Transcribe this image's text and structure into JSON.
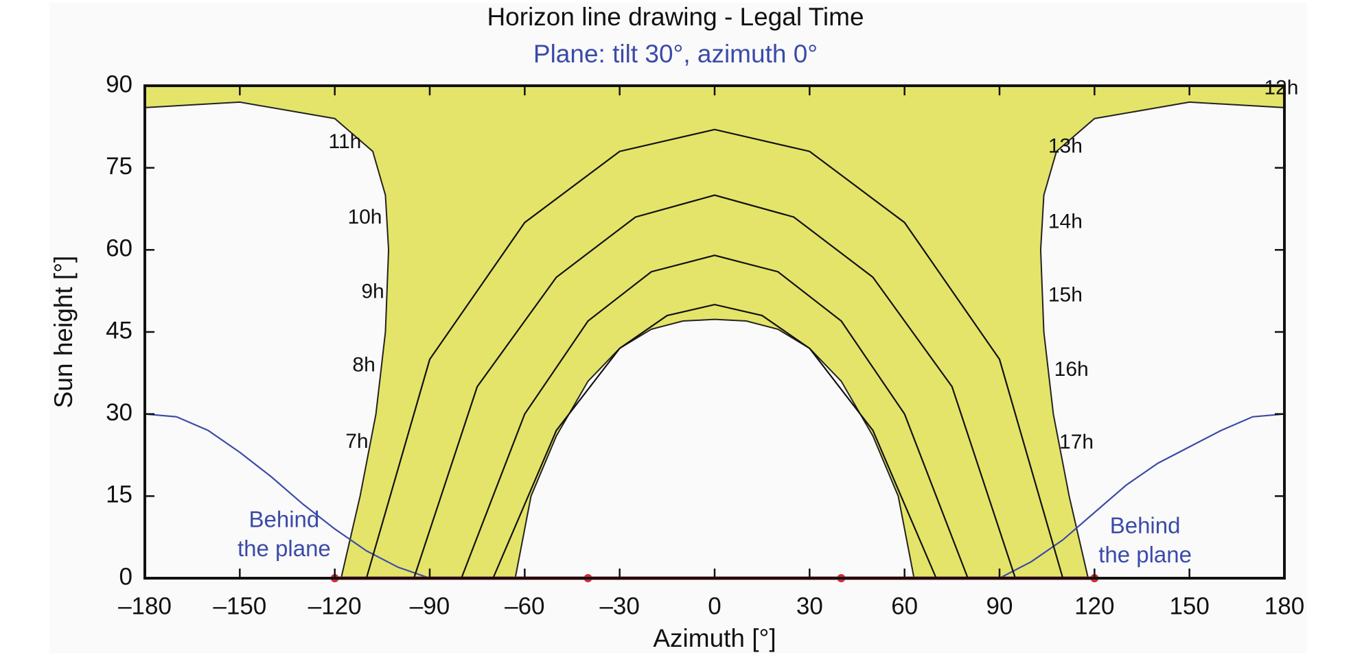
{
  "chart_data": {
    "type": "line",
    "title": "Horizon line drawing - Legal Time",
    "subtitle": "Plane: tilt 30°, azimuth 0°",
    "x_label": "Azimuth [°]",
    "y_label": "Sun height [°]",
    "xlim": [
      -180,
      180
    ],
    "ylim": [
      0,
      90
    ],
    "xticks": [
      {
        "value": -180,
        "label": "–180"
      },
      {
        "value": -150,
        "label": "–150"
      },
      {
        "value": -120,
        "label": "–120"
      },
      {
        "value": -90,
        "label": "–90"
      },
      {
        "value": -60,
        "label": "–60"
      },
      {
        "value": -30,
        "label": "–30"
      },
      0,
      30,
      60,
      90,
      120,
      150,
      180
    ],
    "yticks": [
      0,
      15,
      30,
      45,
      60,
      75,
      90
    ],
    "area": {
      "color": "#e4e46a",
      "x": [
        -180,
        -150,
        -120,
        -108,
        -104,
        -103,
        -104,
        -107,
        -112,
        -118,
        -63,
        -58,
        -50,
        -40,
        -30,
        -20,
        -10,
        0,
        10,
        20,
        30,
        40,
        50,
        58,
        63,
        118,
        112,
        107,
        104,
        103,
        104,
        108,
        120,
        150,
        180,
        180,
        -180
      ],
      "values": [
        86,
        87,
        84,
        78,
        70,
        60,
        45,
        30,
        15,
        0,
        0,
        15,
        26,
        36,
        42,
        45.5,
        47,
        47.3,
        47,
        45.5,
        42,
        36,
        26,
        15,
        0,
        0,
        15,
        30,
        45,
        60,
        70,
        78,
        84,
        87,
        86,
        90,
        90
      ]
    },
    "series": [
      {
        "color": "#3b4aa8",
        "x": [
          -180,
          -170,
          -160,
          -150,
          -140,
          -130,
          -120,
          -110,
          -100,
          -90,
          0,
          90,
          100,
          110,
          120,
          130,
          140,
          150,
          160,
          170,
          180
        ],
        "values": [
          30,
          29.5,
          27,
          23,
          18.5,
          13.5,
          9,
          5,
          2,
          0,
          null,
          0,
          3,
          7,
          12,
          17,
          21,
          24,
          27,
          29.5,
          30
        ]
      },
      {
        "color": "#d62a3a",
        "x": [
          -120,
          -40,
          40,
          120
        ],
        "values": [
          0,
          0,
          0,
          0
        ],
        "markers": true
      },
      {
        "color": "#111111",
        "x": [
          -110,
          -90,
          -60,
          -30,
          0,
          30,
          60,
          90,
          110
        ],
        "values": [
          0,
          40,
          65,
          78,
          82,
          78,
          65,
          40,
          0
        ]
      },
      {
        "color": "#111111",
        "x": [
          -95,
          -75,
          -50,
          -25,
          0,
          25,
          50,
          75,
          95
        ],
        "values": [
          0,
          35,
          55,
          66,
          70,
          66,
          55,
          35,
          0
        ]
      },
      {
        "color": "#111111",
        "x": [
          -80,
          -60,
          -40,
          -20,
          0,
          20,
          40,
          60,
          80
        ],
        "values": [
          0,
          30,
          47,
          56,
          59,
          56,
          47,
          30,
          0
        ]
      },
      {
        "color": "#111111",
        "x": [
          -70,
          -50,
          -30,
          -15,
          0,
          15,
          30,
          50,
          70
        ],
        "values": [
          0,
          27,
          42,
          48,
          50,
          48,
          42,
          27,
          0
        ]
      }
    ],
    "hour_labels": [
      {
        "text": "7h",
        "x": -113,
        "y": 24.8
      },
      {
        "text": "8h",
        "x": -110.8,
        "y": 38.8
      },
      {
        "text": "9h",
        "x": -108,
        "y": 52.2
      },
      {
        "text": "10h",
        "x": -110.5,
        "y": 65.8
      },
      {
        "text": "11h",
        "x": -116.8,
        "y": 79.6
      },
      {
        "text": "12h",
        "x": 179,
        "y": 89.4
      },
      {
        "text": "13h",
        "x": 110.8,
        "y": 78.8
      },
      {
        "text": "14h",
        "x": 110.8,
        "y": 65
      },
      {
        "text": "15h",
        "x": 110.8,
        "y": 51.6
      },
      {
        "text": "16h",
        "x": 112.7,
        "y": 38
      },
      {
        "text": "17h",
        "x": 114.3,
        "y": 24.7
      }
    ],
    "annotations": [
      {
        "lines": [
          "Behind",
          "the plane"
        ],
        "x": -136,
        "y": [
          10.4,
          5.1
        ],
        "color": "#3b4aa8"
      },
      {
        "lines": [
          "Behind",
          "the plane"
        ],
        "x": 136,
        "y": [
          9.3,
          4
        ],
        "color": "#3b4aa8"
      }
    ]
  }
}
